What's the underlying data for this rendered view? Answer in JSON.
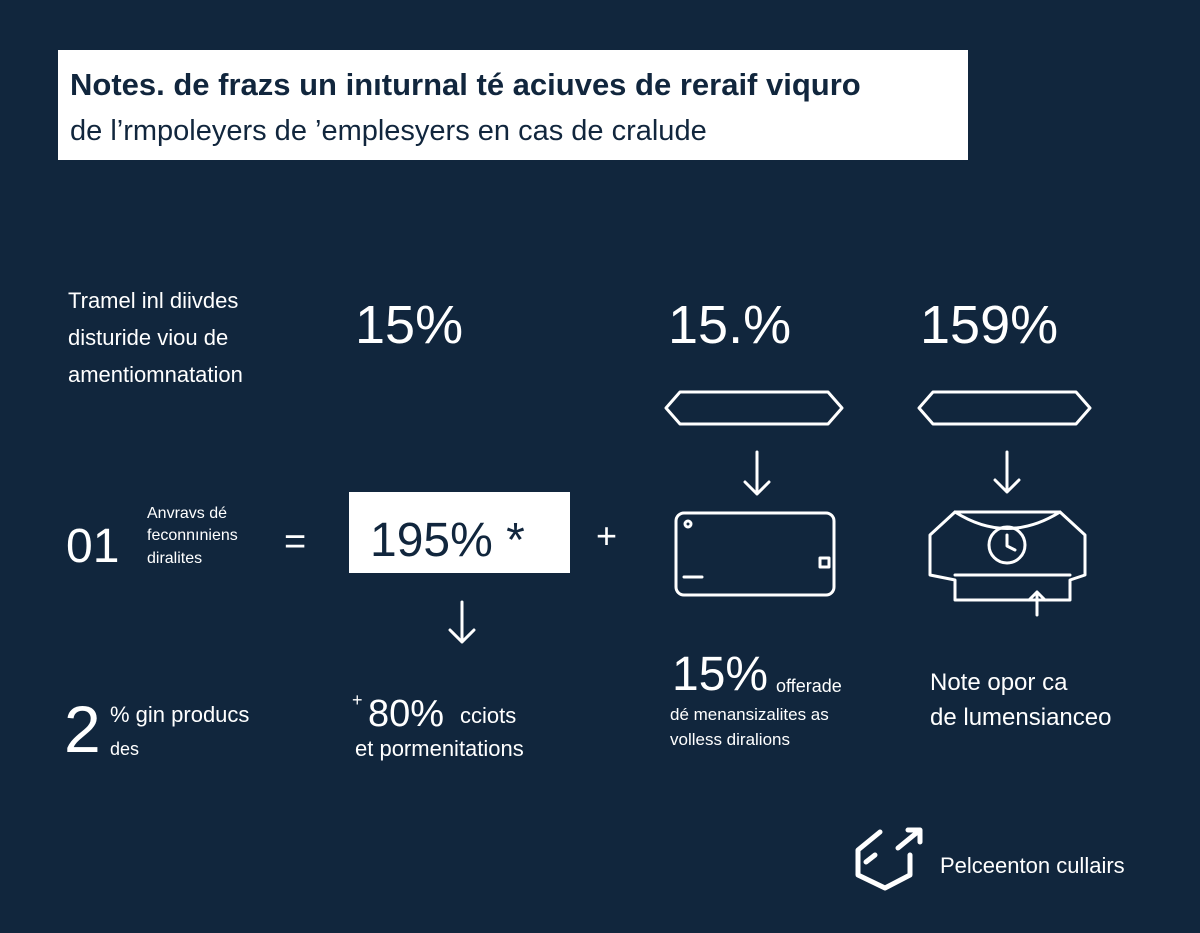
{
  "header": {
    "title": "Notes. de frazs un inıturnal té aciuves de reraif viquro",
    "subtitle": "de l’rmpoleyers de ’emplesyers en cas de cralude"
  },
  "row1": {
    "label": [
      "Tramel inl diivdes",
      "disturide viou de",
      "amentiomnatation"
    ],
    "stats": [
      "15%",
      "15.%",
      "159%"
    ]
  },
  "row2": {
    "number": "01",
    "label": [
      "Anvravs dé",
      "feconnıniens",
      "diralites"
    ],
    "equals": "=",
    "highlight": "195% *",
    "plus": "+"
  },
  "row3": {
    "col1": {
      "number": "2",
      "lines": [
        "% gin producs",
        "des"
      ]
    },
    "col2": {
      "plus": "+",
      "value": "80%",
      "unit": "cciots",
      "line": "et pormenitations"
    },
    "col3": {
      "value": "15%",
      "unit": "offerade",
      "lines": [
        "dé menansizalites as",
        "volless diralions"
      ]
    },
    "col4": {
      "lines": [
        "Note opor ca",
        "de lumensianceo"
      ]
    }
  },
  "footer": {
    "brand": "Pelceenton cullairs"
  }
}
